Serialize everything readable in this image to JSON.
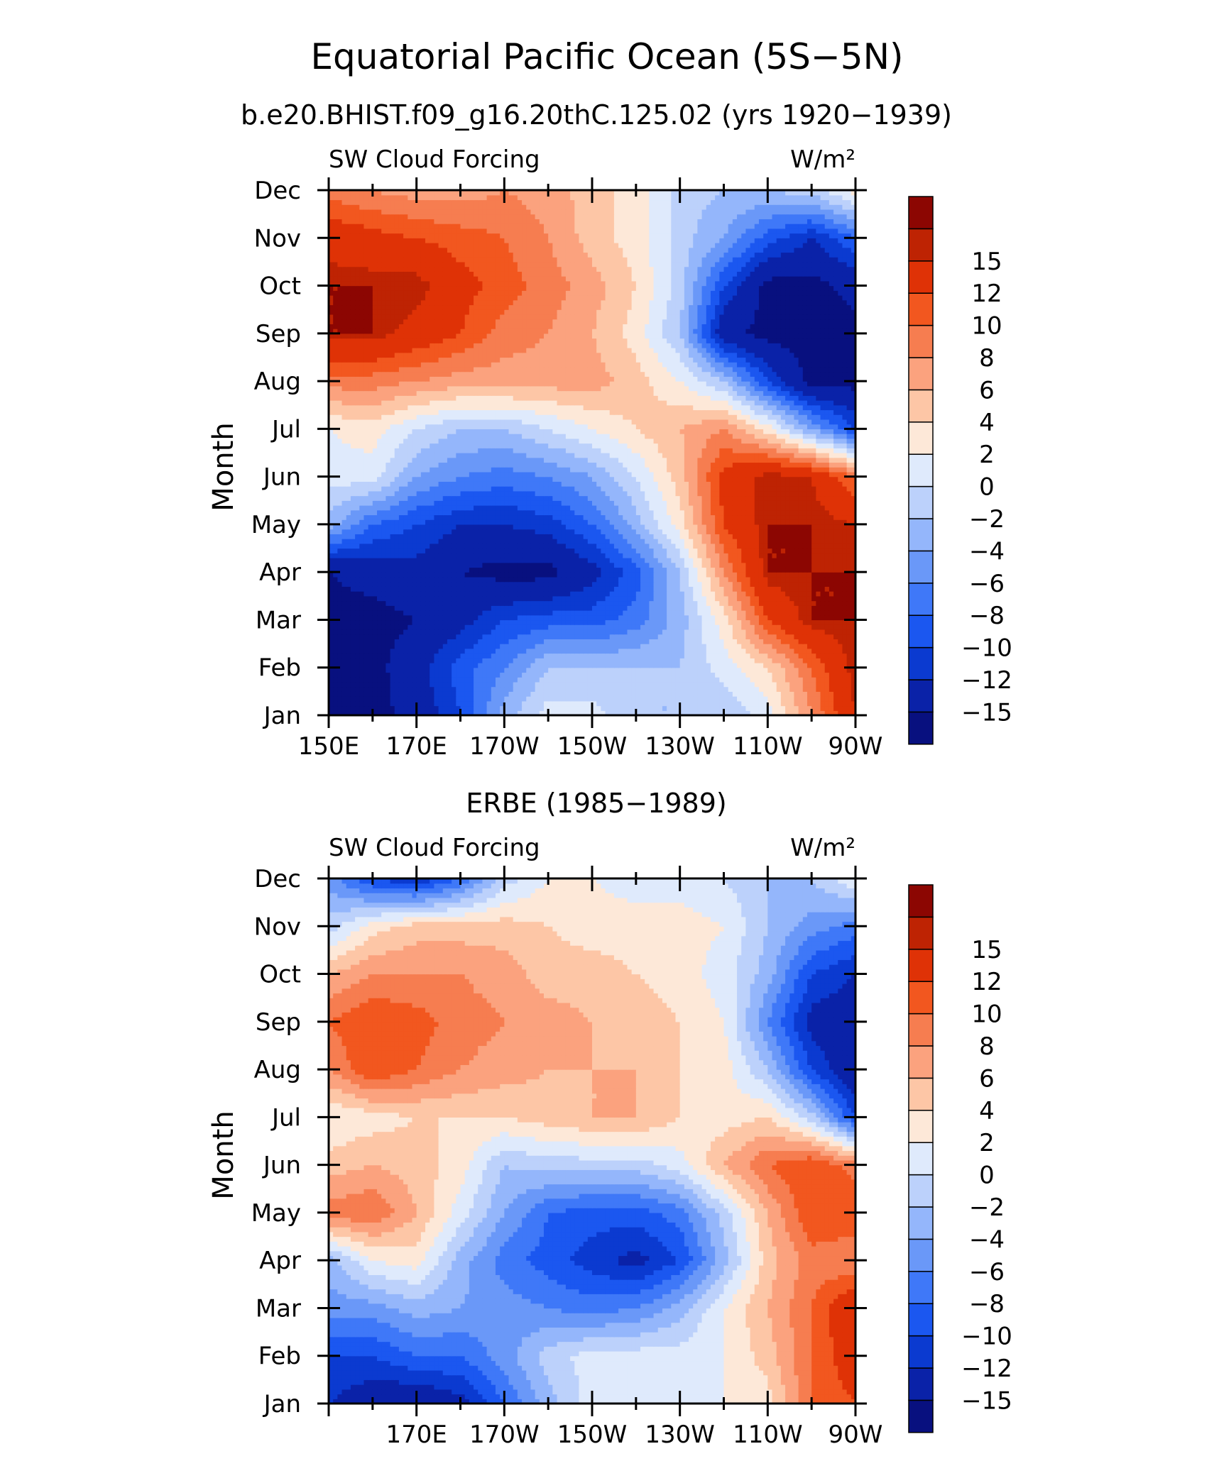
{
  "page": {
    "title": "Equatorial Pacific Ocean (5S−5N)"
  },
  "colorbar": {
    "colors": [
      "#08107f",
      "#0a22a8",
      "#0b3ad0",
      "#1b57f0",
      "#3f78f8",
      "#6a98f8",
      "#94b6fb",
      "#bcd1fb",
      "#dfeafc",
      "#fde8d8",
      "#fdc6a6",
      "#fba27e",
      "#f67d50",
      "#f2571f",
      "#df3206",
      "#be2303",
      "#8c0602"
    ],
    "levels": [
      -16,
      -15,
      -12,
      -10,
      -8,
      -6,
      -4,
      -2,
      0,
      2,
      4,
      6,
      8,
      10,
      12,
      15,
      16
    ],
    "tick_labels": [
      "−15",
      "−12",
      "−10",
      "−8",
      "−6",
      "−4",
      "−2",
      "0",
      "2",
      "4",
      "6",
      "8",
      "10",
      "12",
      "15"
    ]
  },
  "chart_data": [
    {
      "type": "heatmap",
      "title": "b.e20.BHIST.f09_g16.20thC.125.02 (yrs 1920−1939)",
      "left_label": "SW Cloud Forcing",
      "right_label": "W/m²",
      "xlabel": "",
      "ylabel": "Month",
      "x_ticks": [
        "150E",
        "170E",
        "170W",
        "150W",
        "130W",
        "110W",
        "90W"
      ],
      "x_range_deg_east": [
        150,
        270
      ],
      "y_ticks": [
        "Jan",
        "Feb",
        "Mar",
        "Apr",
        "May",
        "Jun",
        "Jul",
        "Aug",
        "Sep",
        "Oct",
        "Nov",
        "Dec"
      ],
      "x": [
        150,
        160,
        170,
        180,
        190,
        200,
        210,
        220,
        230,
        240,
        250,
        260,
        270
      ],
      "z": [
        [
          -16,
          -16,
          -14,
          -10,
          -3,
          1,
          1,
          -2,
          -2,
          -2,
          1,
          8,
          15
        ],
        [
          -16,
          -16,
          -13,
          -9,
          -6,
          -2,
          -2,
          -2,
          -2,
          1,
          4,
          10,
          16
        ],
        [
          -16,
          -16,
          -15,
          -13,
          -10,
          -9,
          -9,
          -7,
          -3,
          3,
          12,
          16,
          16
        ],
        [
          -15,
          -14,
          -13,
          -15,
          -16,
          -16,
          -13,
          -9,
          -2,
          8,
          16,
          16,
          16
        ],
        [
          -3,
          -8,
          -10,
          -12,
          -12,
          -11,
          -8,
          -3,
          3,
          12,
          16,
          16,
          15
        ],
        [
          1,
          1,
          -4,
          -6,
          -7,
          -6,
          -4,
          0,
          5,
          13,
          16,
          15,
          10
        ],
        [
          2,
          3,
          0,
          -2,
          -2,
          0,
          2,
          4,
          6,
          8,
          3,
          -4,
          -10
        ],
        [
          9,
          9,
          8,
          7,
          7,
          7,
          7,
          5,
          2,
          -2,
          -10,
          -16,
          -16
        ],
        [
          16,
          16,
          14,
          12,
          9,
          8,
          6,
          3,
          -2,
          -14,
          -16,
          -16,
          -16
        ],
        [
          16,
          16,
          16,
          13,
          11,
          9,
          7,
          4,
          -1,
          -10,
          -16,
          -16,
          -14
        ],
        [
          14,
          13,
          12,
          11,
          10,
          8,
          5,
          3,
          -1,
          -4,
          -9,
          -12,
          -8
        ],
        [
          9,
          8,
          7,
          7,
          8,
          7,
          5,
          3,
          -1,
          -2,
          -2,
          -1,
          3
        ]
      ]
    },
    {
      "type": "heatmap",
      "title": "ERBE (1985−1989)",
      "left_label": "SW Cloud Forcing",
      "right_label": "W/m²",
      "xlabel": "",
      "ylabel": "Month",
      "x_ticks": [
        "170E",
        "170W",
        "150W",
        "130W",
        "110W",
        "90W"
      ],
      "x_range_deg_east": [
        150,
        270
      ],
      "y_ticks": [
        "Jan",
        "Feb",
        "Mar",
        "Apr",
        "May",
        "Jun",
        "Jul",
        "Aug",
        "Sep",
        "Oct",
        "Nov",
        "Dec"
      ],
      "x": [
        150,
        160,
        170,
        180,
        190,
        200,
        210,
        220,
        230,
        240,
        250,
        260,
        270
      ],
      "z": [
        [
          -12,
          -14,
          -15,
          -13,
          -8,
          -3,
          1,
          2,
          2,
          2,
          3,
          10,
          12
        ],
        [
          -10,
          -10,
          -8,
          -8,
          -5,
          -1,
          1,
          1,
          1,
          2,
          5,
          10,
          14
        ],
        [
          -5,
          -5,
          -3,
          -4,
          -5,
          -6,
          -7,
          -6,
          -3,
          2,
          6,
          10,
          15
        ],
        [
          -3,
          2,
          3,
          -3,
          -7,
          -9,
          -11,
          -13,
          -10,
          -3,
          5,
          9,
          8
        ],
        [
          9,
          10,
          6,
          1,
          -4,
          -8,
          -9,
          -9,
          -7,
          -1,
          6,
          12,
          12
        ],
        [
          5,
          6,
          5,
          3,
          -2,
          -1,
          -1,
          -1,
          1,
          6,
          10,
          12,
          9
        ],
        [
          2,
          3,
          4,
          4,
          4,
          5,
          6,
          6,
          4,
          3,
          4,
          -1,
          -10
        ],
        [
          8,
          12,
          10,
          8,
          7,
          6,
          6,
          6,
          4,
          3,
          -2,
          -10,
          -15
        ],
        [
          10,
          12,
          11,
          9,
          8,
          7,
          6,
          5,
          4,
          2,
          -6,
          -13,
          -14
        ],
        [
          6,
          8,
          8,
          8,
          7,
          5,
          5,
          4,
          3,
          1,
          -3,
          -10,
          -12
        ],
        [
          -1,
          3,
          5,
          5,
          5,
          4,
          3,
          3,
          3,
          2,
          -2,
          -5,
          -7
        ],
        [
          -5,
          -10,
          -12,
          -8,
          -1,
          2,
          2,
          1,
          1,
          0,
          -2,
          -2,
          2
        ]
      ]
    }
  ]
}
